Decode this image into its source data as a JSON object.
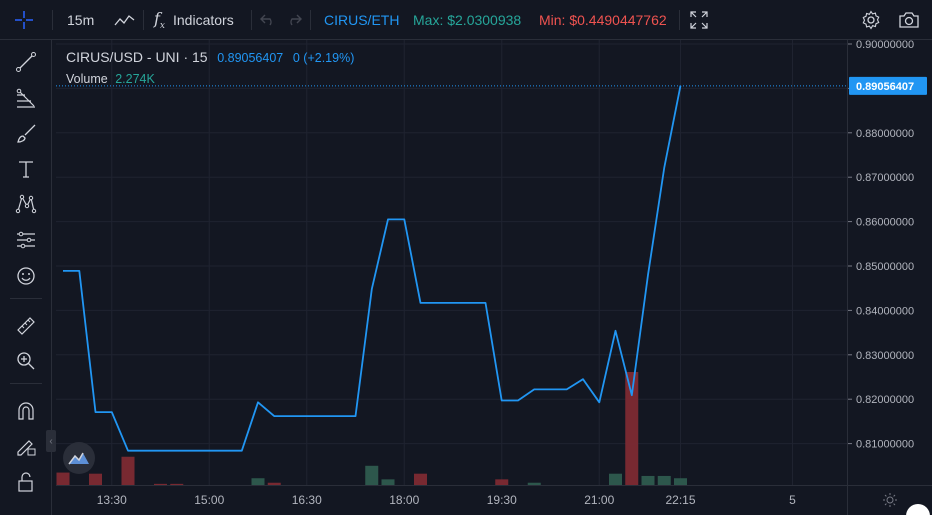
{
  "toolbar": {
    "interval": "15m",
    "indicators_label": "Indicators",
    "pair": "CIRUS/ETH",
    "max_text": "Max: $2.0300938",
    "min_text": "Min: $0.4490447762",
    "colors": {
      "pair": "#2196f3",
      "max": "#26a69a",
      "min": "#ef5350"
    }
  },
  "legend": {
    "symbol": "CIRUS/USD - UNI · 15",
    "price": "0.89056407",
    "change": "0 (+2.19%)",
    "volume_label": "Volume",
    "volume_value": "2.274K"
  },
  "price_axis": {
    "ticks": [
      "0.90000000",
      "0.89000000",
      "0.88000000",
      "0.87000000",
      "0.86000000",
      "0.85000000",
      "0.84000000",
      "0.83000000",
      "0.82000000",
      "0.81000000"
    ],
    "current_label": "0.89056407"
  },
  "time_axis": {
    "ticks": [
      "13:30",
      "15:00",
      "16:30",
      "18:00",
      "19:30",
      "21:00",
      "22:15",
      "5"
    ]
  },
  "chart_data": {
    "type": "line",
    "title": "",
    "xlabel": "",
    "ylabel": "",
    "ylim": [
      0.8,
      0.9
    ],
    "line_color": "#2196f3",
    "x_unit": "time",
    "line": [
      {
        "t": "12:45",
        "y": 0.8489
      },
      {
        "t": "13:00",
        "y": 0.8489
      },
      {
        "t": "13:15",
        "y": 0.8171
      },
      {
        "t": "13:30",
        "y": 0.8171
      },
      {
        "t": "13:45",
        "y": 0.8084
      },
      {
        "t": "14:00",
        "y": 0.8084
      },
      {
        "t": "14:15",
        "y": 0.8084
      },
      {
        "t": "14:30",
        "y": 0.8084
      },
      {
        "t": "14:45",
        "y": 0.8084
      },
      {
        "t": "15:00",
        "y": 0.8084
      },
      {
        "t": "15:15",
        "y": 0.8084
      },
      {
        "t": "15:30",
        "y": 0.8084
      },
      {
        "t": "15:45",
        "y": 0.8193
      },
      {
        "t": "16:00",
        "y": 0.8162
      },
      {
        "t": "16:15",
        "y": 0.8162
      },
      {
        "t": "16:30",
        "y": 0.8162
      },
      {
        "t": "16:45",
        "y": 0.8162
      },
      {
        "t": "17:00",
        "y": 0.8162
      },
      {
        "t": "17:15",
        "y": 0.8162
      },
      {
        "t": "17:30",
        "y": 0.8448
      },
      {
        "t": "17:45",
        "y": 0.8605
      },
      {
        "t": "18:00",
        "y": 0.8605
      },
      {
        "t": "18:15",
        "y": 0.8417
      },
      {
        "t": "18:30",
        "y": 0.8417
      },
      {
        "t": "18:45",
        "y": 0.8417
      },
      {
        "t": "19:00",
        "y": 0.8417
      },
      {
        "t": "19:15",
        "y": 0.8417
      },
      {
        "t": "19:30",
        "y": 0.8197
      },
      {
        "t": "19:45",
        "y": 0.8197
      },
      {
        "t": "20:00",
        "y": 0.8222
      },
      {
        "t": "20:15",
        "y": 0.8222
      },
      {
        "t": "20:30",
        "y": 0.8222
      },
      {
        "t": "20:45",
        "y": 0.8245
      },
      {
        "t": "21:00",
        "y": 0.8193
      },
      {
        "t": "21:15",
        "y": 0.8354
      },
      {
        "t": "21:30",
        "y": 0.8209
      },
      {
        "t": "21:45",
        "y": 0.848
      },
      {
        "t": "22:00",
        "y": 0.8722
      },
      {
        "t": "22:15",
        "y": 0.8906
      }
    ],
    "volume": [
      {
        "t": "12:45",
        "v": 0.11,
        "dir": "down"
      },
      {
        "t": "13:15",
        "v": 0.1,
        "dir": "down"
      },
      {
        "t": "13:45",
        "v": 0.25,
        "dir": "down"
      },
      {
        "t": "14:15",
        "v": 0.01,
        "dir": "down"
      },
      {
        "t": "14:30",
        "v": 0.01,
        "dir": "down"
      },
      {
        "t": "15:45",
        "v": 0.06,
        "dir": "up"
      },
      {
        "t": "16:00",
        "v": 0.02,
        "dir": "down"
      },
      {
        "t": "17:30",
        "v": 0.17,
        "dir": "up"
      },
      {
        "t": "17:45",
        "v": 0.05,
        "dir": "up"
      },
      {
        "t": "18:15",
        "v": 0.1,
        "dir": "down"
      },
      {
        "t": "19:30",
        "v": 0.05,
        "dir": "down"
      },
      {
        "t": "20:00",
        "v": 0.02,
        "dir": "up"
      },
      {
        "t": "21:15",
        "v": 0.1,
        "dir": "up"
      },
      {
        "t": "21:30",
        "v": 1.0,
        "dir": "down"
      },
      {
        "t": "21:45",
        "v": 0.08,
        "dir": "up"
      },
      {
        "t": "22:00",
        "v": 0.08,
        "dir": "up"
      },
      {
        "t": "22:15",
        "v": 0.06,
        "dir": "up"
      }
    ],
    "grid": true
  }
}
